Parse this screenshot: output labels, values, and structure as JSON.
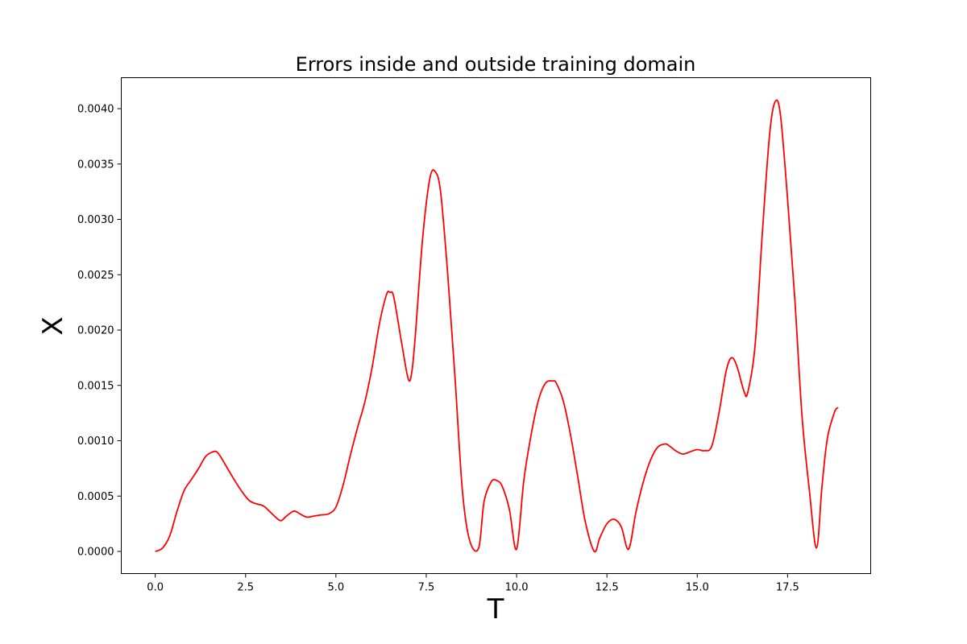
{
  "chart_data": {
    "type": "line",
    "title": "Errors inside and outside training domain",
    "xlabel": "T",
    "ylabel": "X",
    "xlim": [
      -0.94,
      19.8
    ],
    "ylim": [
      -0.0002,
      0.00428
    ],
    "xticks": [
      0.0,
      2.5,
      5.0,
      7.5,
      10.0,
      12.5,
      15.0,
      17.5
    ],
    "xtick_labels": [
      "0.0",
      "2.5",
      "5.0",
      "7.5",
      "10.0",
      "12.5",
      "15.0",
      "17.5"
    ],
    "yticks": [
      0.0,
      0.0005,
      0.001,
      0.0015,
      0.002,
      0.0025,
      0.003,
      0.0035,
      0.004
    ],
    "ytick_labels": [
      "0.0000",
      "0.0005",
      "0.0010",
      "0.0015",
      "0.0020",
      "0.0025",
      "0.0030",
      "0.0035",
      "0.0040"
    ],
    "grid": false,
    "series": [
      {
        "color": "#ff0000",
        "x": [
          0.0,
          0.2,
          0.4,
          0.6,
          0.8,
          1.0,
          1.2,
          1.4,
          1.6,
          1.7,
          1.8,
          2.0,
          2.2,
          2.4,
          2.6,
          2.8,
          3.0,
          3.2,
          3.4,
          3.5,
          3.6,
          3.8,
          3.9,
          4.0,
          4.2,
          4.4,
          4.6,
          4.8,
          5.0,
          5.2,
          5.4,
          5.6,
          5.8,
          6.0,
          6.2,
          6.4,
          6.5,
          6.6,
          6.8,
          7.0,
          7.1,
          7.2,
          7.4,
          7.6,
          7.75,
          7.9,
          8.1,
          8.3,
          8.5,
          8.7,
          8.95,
          9.1,
          9.3,
          9.45,
          9.6,
          9.8,
          10.0,
          10.2,
          10.4,
          10.6,
          10.8,
          11.0,
          11.1,
          11.3,
          11.5,
          11.7,
          11.9,
          12.15,
          12.3,
          12.5,
          12.7,
          12.9,
          13.1,
          13.3,
          13.5,
          13.7,
          13.9,
          14.1,
          14.2,
          14.4,
          14.6,
          14.8,
          15.0,
          15.2,
          15.4,
          15.6,
          15.8,
          15.95,
          16.1,
          16.3,
          16.4,
          16.6,
          16.8,
          17.0,
          17.15,
          17.3,
          17.5,
          17.7,
          17.9,
          18.1,
          18.3,
          18.45,
          18.6,
          18.8,
          18.9
        ],
        "y": [
          0.0,
          3e-05,
          0.00014,
          0.00036,
          0.00055,
          0.00065,
          0.00075,
          0.00086,
          0.0009,
          0.0009,
          0.00086,
          0.00075,
          0.00064,
          0.00054,
          0.00046,
          0.00043,
          0.00041,
          0.00035,
          0.00029,
          0.00028,
          0.00031,
          0.00036,
          0.00036,
          0.00034,
          0.00031,
          0.00032,
          0.00033,
          0.00034,
          0.0004,
          0.0006,
          0.00087,
          0.00112,
          0.00135,
          0.00166,
          0.00205,
          0.00232,
          0.00234,
          0.0023,
          0.00192,
          0.00156,
          0.00162,
          0.00196,
          0.00283,
          0.00337,
          0.00343,
          0.00324,
          0.00248,
          0.00155,
          0.00055,
          0.0001,
          3e-05,
          0.00045,
          0.00063,
          0.00064,
          0.00059,
          0.00038,
          2e-05,
          0.00064,
          0.00105,
          0.00136,
          0.00152,
          0.00154,
          0.00152,
          0.00135,
          0.00104,
          0.00066,
          0.00027,
          0.0,
          0.00012,
          0.00025,
          0.00029,
          0.00022,
          2e-05,
          0.00035,
          0.00062,
          0.00082,
          0.00094,
          0.00097,
          0.00096,
          0.00091,
          0.00088,
          0.0009,
          0.00092,
          0.00091,
          0.00095,
          0.00125,
          0.00163,
          0.00175,
          0.00167,
          0.00144,
          0.00144,
          0.00186,
          0.00287,
          0.00376,
          0.00406,
          0.00395,
          0.00318,
          0.00228,
          0.00122,
          0.00056,
          3e-05,
          0.00058,
          0.00102,
          0.00126,
          0.0013
        ]
      }
    ]
  }
}
